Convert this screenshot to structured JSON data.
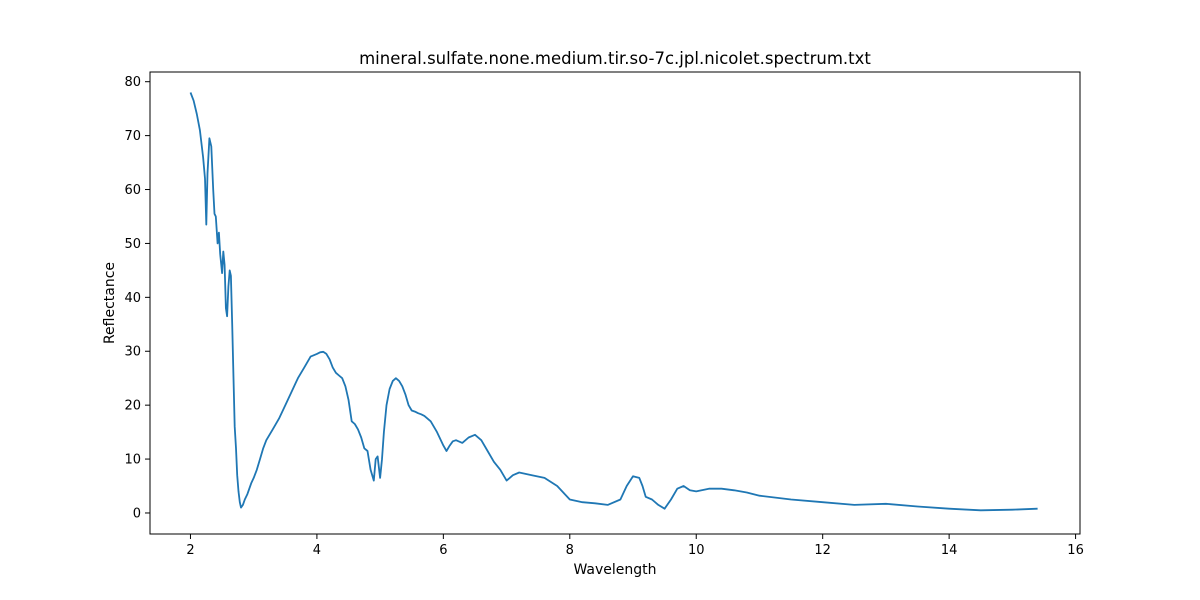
{
  "chart_data": {
    "type": "line",
    "title": "mineral.sulfate.none.medium.tir.so-7c.jpl.nicolet.spectrum.txt",
    "xlabel": "Wavelength",
    "ylabel": "Reflectance",
    "xlim": [
      1.36,
      16.07
    ],
    "ylim": [
      -3.9,
      81.8
    ],
    "xticks": [
      2,
      4,
      6,
      8,
      10,
      12,
      14,
      16
    ],
    "yticks": [
      0,
      10,
      20,
      30,
      40,
      50,
      60,
      70,
      80
    ],
    "grid": false,
    "legend": "none",
    "series": [
      {
        "color": "#1f77b4",
        "x": [
          2.0,
          2.05,
          2.1,
          2.15,
          2.2,
          2.23,
          2.25,
          2.27,
          2.3,
          2.33,
          2.36,
          2.38,
          2.4,
          2.43,
          2.45,
          2.47,
          2.5,
          2.52,
          2.54,
          2.56,
          2.58,
          2.6,
          2.62,
          2.64,
          2.66,
          2.68,
          2.7,
          2.72,
          2.74,
          2.76,
          2.78,
          2.8,
          2.83,
          2.86,
          2.9,
          2.93,
          2.96,
          3.0,
          3.05,
          3.1,
          3.15,
          3.2,
          3.3,
          3.4,
          3.5,
          3.6,
          3.7,
          3.8,
          3.9,
          4.0,
          4.05,
          4.1,
          4.15,
          4.2,
          4.25,
          4.3,
          4.35,
          4.4,
          4.45,
          4.5,
          4.55,
          4.6,
          4.65,
          4.7,
          4.75,
          4.8,
          4.85,
          4.9,
          4.93,
          4.96,
          5.0,
          5.03,
          5.06,
          5.1,
          5.15,
          5.2,
          5.25,
          5.3,
          5.35,
          5.4,
          5.45,
          5.5,
          5.55,
          5.6,
          5.65,
          5.7,
          5.8,
          5.9,
          6.0,
          6.05,
          6.1,
          6.15,
          6.2,
          6.3,
          6.4,
          6.5,
          6.6,
          6.7,
          6.8,
          6.9,
          7.0,
          7.1,
          7.2,
          7.4,
          7.6,
          7.8,
          8.0,
          8.2,
          8.4,
          8.6,
          8.8,
          8.9,
          9.0,
          9.1,
          9.15,
          9.2,
          9.3,
          9.4,
          9.5,
          9.6,
          9.7,
          9.8,
          9.9,
          10.0,
          10.2,
          10.4,
          10.6,
          10.8,
          11.0,
          11.5,
          12.0,
          12.5,
          13.0,
          13.5,
          14.0,
          14.5,
          15.0,
          15.4
        ],
        "y": [
          78.0,
          76.5,
          74.0,
          71.0,
          66.0,
          62.0,
          53.5,
          63.0,
          69.5,
          68.0,
          60.0,
          55.5,
          55.0,
          50.0,
          52.0,
          48.0,
          44.5,
          48.5,
          46.0,
          38.0,
          36.5,
          42.0,
          45.0,
          44.0,
          35.0,
          25.0,
          16.0,
          12.0,
          7.0,
          4.0,
          2.0,
          1.0,
          1.5,
          2.5,
          3.5,
          4.5,
          5.5,
          6.5,
          8.0,
          10.0,
          12.0,
          13.5,
          15.5,
          17.5,
          20.0,
          22.5,
          25.0,
          27.0,
          29.0,
          29.5,
          29.8,
          29.9,
          29.5,
          28.5,
          27.0,
          26.0,
          25.5,
          25.0,
          23.5,
          21.0,
          17.0,
          16.5,
          15.5,
          14.0,
          12.0,
          11.5,
          8.0,
          6.0,
          10.0,
          10.5,
          6.5,
          10.0,
          15.0,
          20.0,
          23.0,
          24.5,
          25.0,
          24.5,
          23.5,
          22.0,
          20.0,
          19.0,
          18.8,
          18.5,
          18.3,
          18.0,
          17.0,
          15.0,
          12.5,
          11.5,
          12.5,
          13.3,
          13.5,
          13.0,
          14.0,
          14.5,
          13.5,
          11.5,
          9.5,
          8.0,
          6.0,
          7.0,
          7.5,
          7.0,
          6.5,
          5.0,
          2.5,
          2.0,
          1.8,
          1.5,
          2.5,
          5.0,
          6.8,
          6.5,
          5.0,
          3.0,
          2.5,
          1.5,
          0.8,
          2.5,
          4.5,
          5.0,
          4.2,
          4.0,
          4.5,
          4.5,
          4.2,
          3.8,
          3.2,
          2.5,
          2.0,
          1.5,
          1.7,
          1.2,
          0.8,
          0.5,
          0.6,
          0.8
        ]
      }
    ]
  }
}
